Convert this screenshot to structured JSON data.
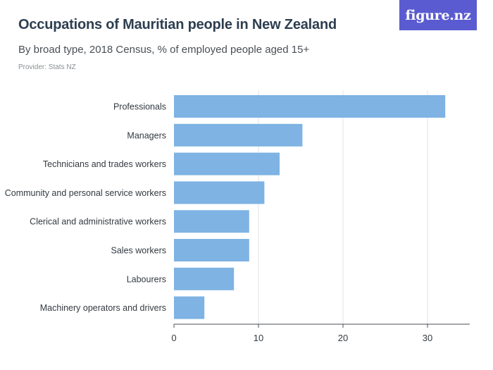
{
  "header": {
    "title": "Occupations of Mauritian people in New Zealand",
    "subtitle": "By broad type, 2018 Census, % of employed people aged 15+",
    "provider": "Provider: Stats NZ",
    "logo": "figure.nz"
  },
  "colors": {
    "bar": "#7eb3e3",
    "grid": "#dde1e4",
    "axis": "#4a4f55",
    "logo_bg": "#5b5bd1"
  },
  "chart_data": {
    "type": "bar",
    "orientation": "horizontal",
    "categories": [
      "Professionals",
      "Managers",
      "Technicians and trades workers",
      "Community and personal service workers",
      "Clerical and administrative workers",
      "Sales workers",
      "Labourers",
      "Machinery operators and drivers"
    ],
    "values": [
      32.1,
      15.2,
      12.5,
      10.7,
      8.9,
      8.9,
      7.1,
      3.6
    ],
    "xlim": [
      0,
      35
    ],
    "xticks": [
      0,
      10,
      20,
      30
    ],
    "title": "Occupations of Mauritian people in New Zealand",
    "xlabel": "",
    "ylabel": "",
    "grid": "vertical"
  }
}
